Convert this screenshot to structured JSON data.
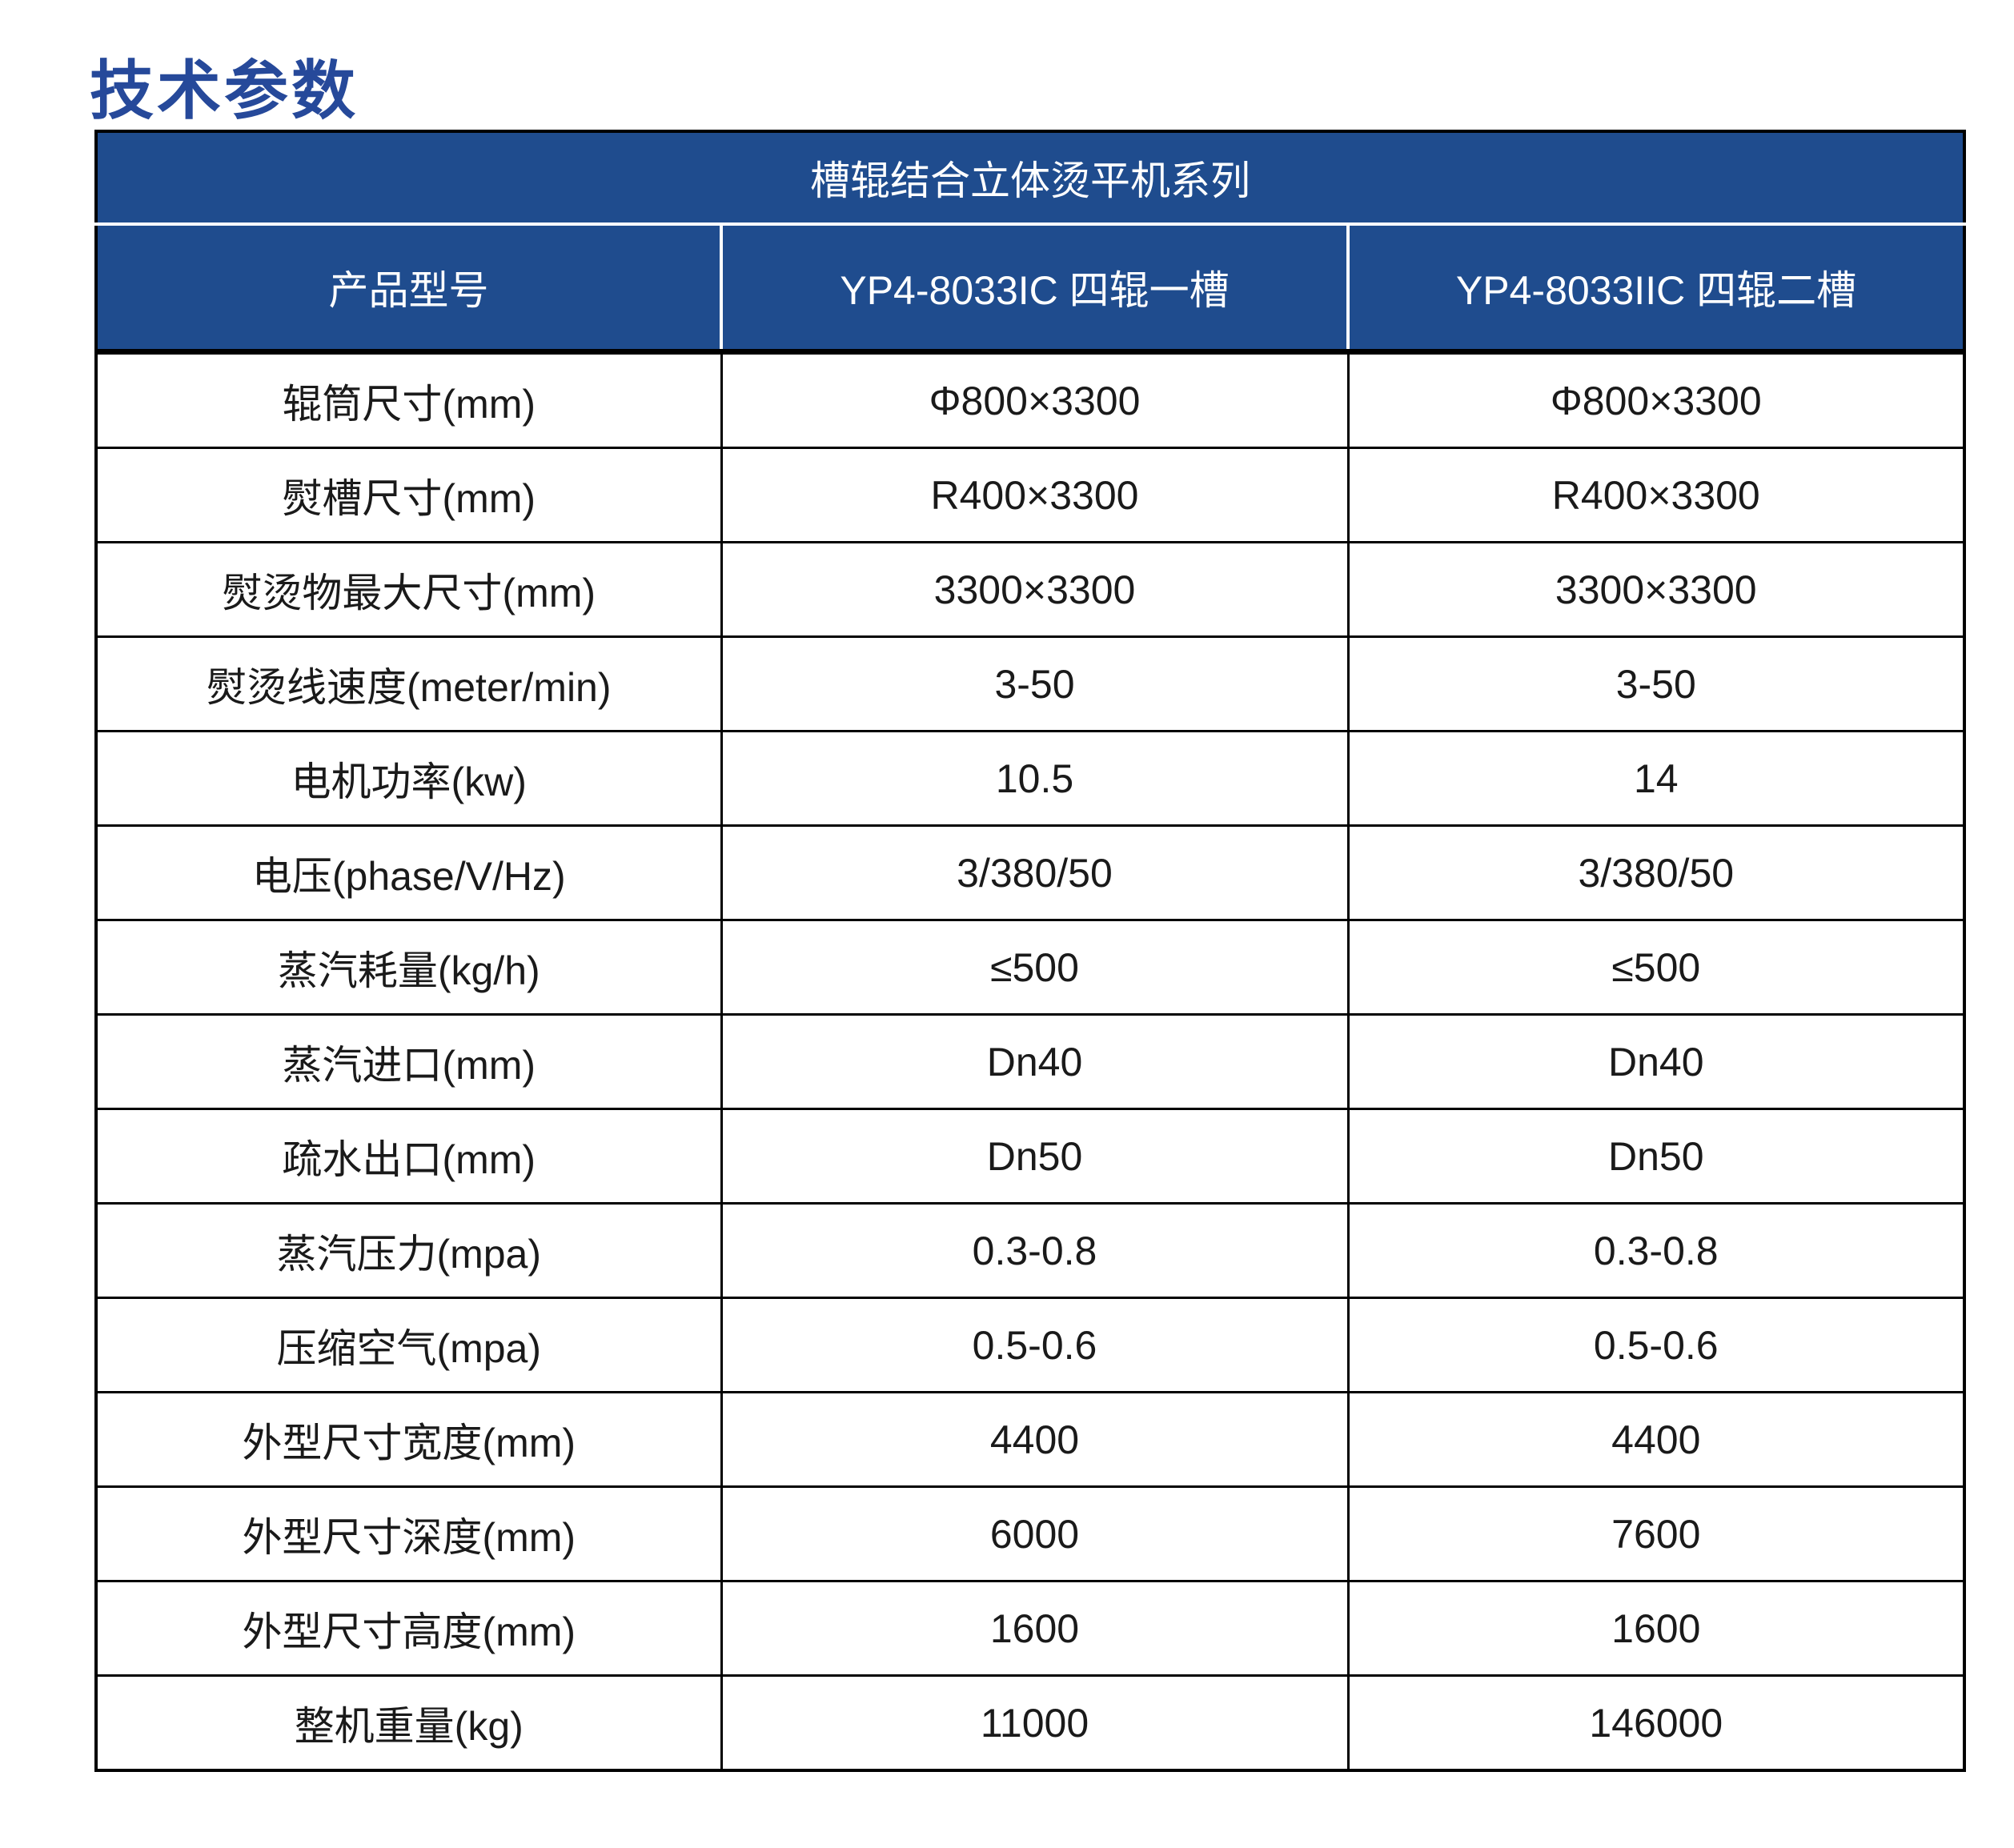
{
  "page_title": "技术参数",
  "table": {
    "series_title": "槽辊结合立体烫平机系列",
    "columns": [
      "产品型号",
      "YP4-8033IC 四辊一槽",
      "YP4-8033IIC 四辊二槽"
    ],
    "rows": [
      {
        "label": "辊筒尺寸(mm)",
        "col1": "Φ800×3300",
        "col2": "Φ800×3300"
      },
      {
        "label": "熨槽尺寸(mm)",
        "col1": "R400×3300",
        "col2": "R400×3300"
      },
      {
        "label": "熨烫物最大尺寸(mm)",
        "col1": "3300×3300",
        "col2": "3300×3300"
      },
      {
        "label": "熨烫线速度(meter/min)",
        "col1": "3-50",
        "col2": "3-50"
      },
      {
        "label": "电机功率(kw)",
        "col1": "10.5",
        "col2": "14"
      },
      {
        "label": "电压(phase/V/Hz)",
        "col1": "3/380/50",
        "col2": "3/380/50"
      },
      {
        "label": "蒸汽耗量(kg/h)",
        "col1": "≤500",
        "col2": "≤500"
      },
      {
        "label": "蒸汽进口(mm)",
        "col1": "Dn40",
        "col2": "Dn40"
      },
      {
        "label": "疏水出口(mm)",
        "col1": "Dn50",
        "col2": "Dn50"
      },
      {
        "label": "蒸汽压力(mpa)",
        "col1": "0.3-0.8",
        "col2": "0.3-0.8"
      },
      {
        "label": "压缩空气(mpa)",
        "col1": "0.5-0.6",
        "col2": "0.5-0.6"
      },
      {
        "label": "外型尺寸宽度(mm)",
        "col1": "4400",
        "col2": "4400"
      },
      {
        "label": "外型尺寸深度(mm)",
        "col1": "6000",
        "col2": "7600"
      },
      {
        "label": "外型尺寸高度(mm)",
        "col1": "1600",
        "col2": "1600"
      },
      {
        "label": "整机重量(kg)",
        "col1": "11000",
        "col2": "146000"
      }
    ]
  },
  "colors": {
    "header_bg": "#1F4C8E",
    "title_text": "#26499A",
    "body_text": "#1A1A1A",
    "grid_border": "#000000",
    "header_text": "#FFFFFF"
  }
}
